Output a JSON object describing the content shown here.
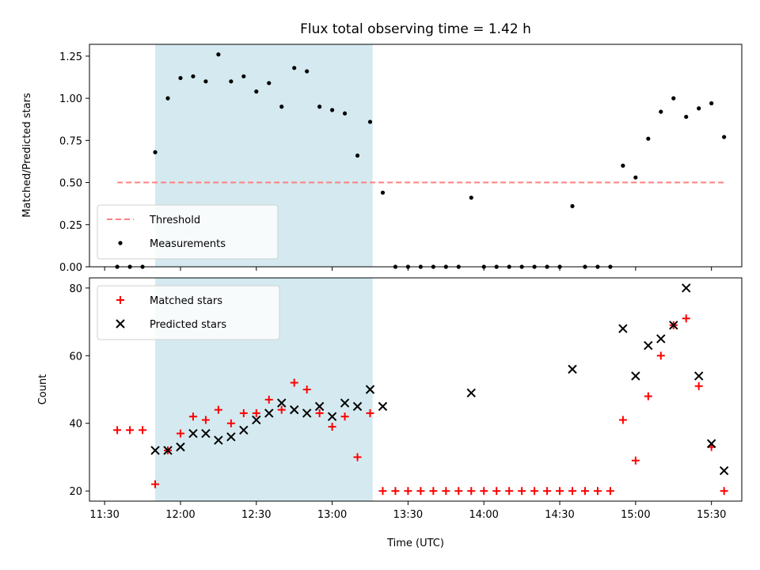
{
  "chart_data": {
    "title": "Flux total observing time = 1.42 h",
    "xlabel": "Time (UTC)",
    "x_ticks": [
      "11:30",
      "12:00",
      "12:30",
      "13:00",
      "13:30",
      "14:00",
      "14:30",
      "15:00",
      "15:30"
    ],
    "x_range": [
      "11:24",
      "15:42"
    ],
    "shaded_interval": [
      "11:50",
      "13:16"
    ],
    "shade_color": "#d4eaf0",
    "panels": [
      {
        "type": "scatter",
        "ylabel": "Matched/Predicted stars",
        "ylim": [
          0,
          1.32
        ],
        "y_ticks": [
          "0.00",
          "0.25",
          "0.50",
          "0.75",
          "1.00",
          "1.25"
        ],
        "threshold": {
          "name": "Threshold",
          "value": 0.5,
          "x_start": "11:35",
          "x_end": "15:35",
          "color": "#ff7f7f"
        },
        "legend": {
          "placement": "lower-left",
          "entries": [
            "Threshold",
            "Measurements"
          ]
        },
        "series": [
          {
            "name": "Measurements",
            "color": "#000000",
            "marker": "dot",
            "x": [
              "11:35",
              "11:40",
              "11:45",
              "11:50",
              "11:55",
              "12:00",
              "12:05",
              "12:10",
              "12:15",
              "12:20",
              "12:25",
              "12:30",
              "12:35",
              "12:40",
              "12:45",
              "12:50",
              "12:55",
              "13:00",
              "13:05",
              "13:10",
              "13:15",
              "13:20",
              "13:25",
              "13:30",
              "13:35",
              "13:40",
              "13:45",
              "13:50",
              "13:55",
              "14:00",
              "14:05",
              "14:10",
              "14:15",
              "14:20",
              "14:25",
              "14:30",
              "14:35",
              "14:40",
              "14:45",
              "14:50",
              "14:55",
              "15:00",
              "15:05",
              "15:10",
              "15:15",
              "15:20",
              "15:25",
              "15:30",
              "15:35"
            ],
            "y": [
              0,
              0,
              0,
              0.68,
              1.0,
              1.12,
              1.13,
              1.1,
              1.26,
              1.1,
              1.13,
              1.04,
              1.09,
              0.95,
              1.18,
              1.16,
              0.95,
              0.93,
              0.91,
              0.66,
              0.86,
              0.44,
              0,
              0,
              0,
              0,
              0,
              0,
              0.41,
              0,
              0,
              0,
              0,
              0,
              0,
              0,
              0.36,
              0,
              0,
              0,
              0.6,
              0.53,
              0.76,
              0.92,
              1.0,
              0.89,
              0.94,
              0.97,
              0.77
            ]
          }
        ]
      },
      {
        "type": "scatter",
        "ylabel": "Count",
        "ylim": [
          17,
          83
        ],
        "y_ticks": [
          "20",
          "40",
          "60",
          "80"
        ],
        "legend": {
          "placement": "upper-left",
          "entries": [
            "Matched stars",
            "Predicted stars"
          ]
        },
        "series": [
          {
            "name": "Matched stars",
            "color": "#ff0000",
            "marker": "plus",
            "x": [
              "11:35",
              "11:40",
              "11:45",
              "11:50",
              "11:55",
              "12:00",
              "12:05",
              "12:10",
              "12:15",
              "12:20",
              "12:25",
              "12:30",
              "12:35",
              "12:40",
              "12:45",
              "12:50",
              "12:55",
              "13:00",
              "13:05",
              "13:10",
              "13:15",
              "13:20",
              "13:25",
              "13:30",
              "13:35",
              "13:40",
              "13:45",
              "13:50",
              "13:55",
              "14:00",
              "14:05",
              "14:10",
              "14:15",
              "14:20",
              "14:25",
              "14:30",
              "14:35",
              "14:40",
              "14:45",
              "14:50",
              "14:55",
              "15:00",
              "15:05",
              "15:10",
              "15:15",
              "15:20",
              "15:25",
              "15:30",
              "15:35"
            ],
            "y": [
              38,
              38,
              38,
              22,
              32,
              37,
              42,
              41,
              44,
              40,
              43,
              43,
              47,
              44,
              52,
              50,
              43,
              39,
              42,
              30,
              43,
              20,
              20,
              20,
              20,
              20,
              20,
              20,
              20,
              20,
              20,
              20,
              20,
              20,
              20,
              20,
              20,
              20,
              20,
              20,
              41,
              29,
              48,
              60,
              69,
              71,
              51,
              33,
              20
            ]
          },
          {
            "name": "Predicted stars",
            "color": "#000000",
            "marker": "x",
            "x": [
              "11:50",
              "11:55",
              "12:00",
              "12:05",
              "12:10",
              "12:15",
              "12:20",
              "12:25",
              "12:30",
              "12:35",
              "12:40",
              "12:45",
              "12:50",
              "12:55",
              "13:00",
              "13:05",
              "13:10",
              "13:15",
              "13:20",
              "13:55",
              "14:35",
              "14:55",
              "15:00",
              "15:05",
              "15:10",
              "15:15",
              "15:20",
              "15:25",
              "15:30",
              "15:35"
            ],
            "y": [
              32,
              32,
              33,
              37,
              37,
              35,
              36,
              38,
              41,
              43,
              46,
              44,
              43,
              45,
              42,
              46,
              45,
              50,
              45,
              49,
              56,
              68,
              54,
              63,
              65,
              69,
              80,
              54,
              34,
              26
            ]
          }
        ]
      }
    ]
  }
}
